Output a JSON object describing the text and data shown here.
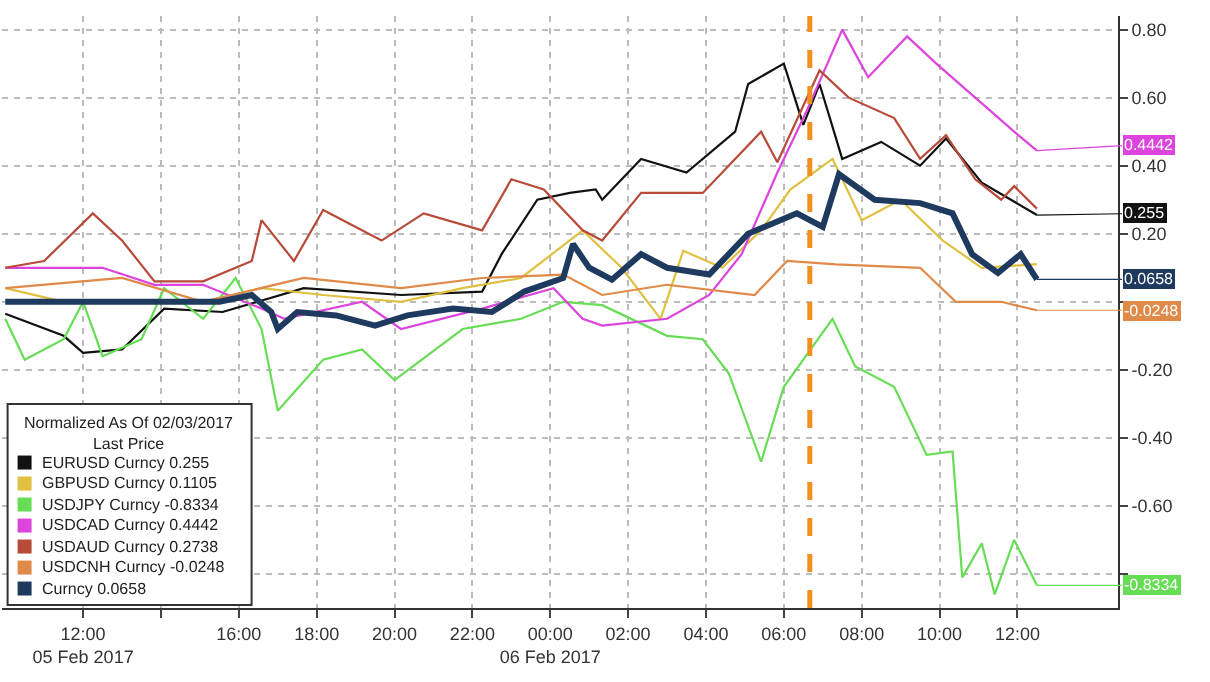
{
  "chart_data": {
    "type": "line",
    "legend_title": "Normalized As Of 02/03/2017\nLast Price",
    "xlim": [
      "2017-02-05T09:55",
      "2017-02-06T14:35"
    ],
    "xticks": [
      {
        "value": "2017-02-05T12:00",
        "label": "12:00\n05 Feb 2017"
      },
      {
        "value": "2017-02-05T14:00",
        "label": null
      },
      {
        "value": "2017-02-05T16:00",
        "label": "16:00"
      },
      {
        "value": "2017-02-05T18:00",
        "label": "18:00"
      },
      {
        "value": "2017-02-05T20:00",
        "label": "20:00"
      },
      {
        "value": "2017-02-05T22:00",
        "label": "22:00"
      },
      {
        "value": "2017-02-06T00:00",
        "label": "00:00\n06 Feb 2017"
      },
      {
        "value": "2017-02-06T02:00",
        "label": "02:00"
      },
      {
        "value": "2017-02-06T04:00",
        "label": "04:00"
      },
      {
        "value": "2017-02-06T06:00",
        "label": "06:00"
      },
      {
        "value": "2017-02-06T08:00",
        "label": "08:00"
      },
      {
        "value": "2017-02-06T10:00",
        "label": "10:00"
      },
      {
        "value": "2017-02-06T12:00",
        "label": "12:00"
      }
    ],
    "ylim": [
      -0.9,
      0.84
    ],
    "yticks": [
      {
        "value": 0.8,
        "label": "0.80"
      },
      {
        "value": 0.6,
        "label": "0.60"
      },
      {
        "value": 0.4,
        "label": "0.40"
      },
      {
        "value": 0.2,
        "label": "0.20"
      },
      {
        "value": 0,
        "label": null
      },
      {
        "value": -0.2,
        "label": "-0.20"
      },
      {
        "value": -0.4,
        "label": "-0.40"
      },
      {
        "value": -0.6,
        "label": "-0.60"
      },
      {
        "value": -0.8,
        "label": null
      }
    ],
    "grid": true,
    "legend": "bottom left",
    "marker": "none",
    "line_style": "solid",
    "ref_lines": [
      {
        "axis": "x",
        "value": "2017-02-06T06:40",
        "color": "#f0901e",
        "line_style": "dashed"
      }
    ],
    "series": [
      {
        "name": "EURUSD Curncy 0.255",
        "color": "#111111",
        "x": [
          "2017-02-05T10:00",
          "2017-02-05T11:30",
          "2017-02-05T12:00",
          "2017-02-05T13:00",
          "2017-02-05T14:05",
          "2017-02-05T15:35",
          "2017-02-05T17:40",
          "2017-02-05T20:10",
          "2017-02-05T22:15",
          "2017-02-05T22:45",
          "2017-02-05T23:40",
          "2017-02-06T00:30",
          "2017-02-06T01:10",
          "2017-02-06T01:20",
          "2017-02-06T02:20",
          "2017-02-06T03:30",
          "2017-02-06T04:45",
          "2017-02-06T05:05",
          "2017-02-06T06:00",
          "2017-02-06T06:30",
          "2017-02-06T06:55",
          "2017-02-06T07:30",
          "2017-02-06T08:30",
          "2017-02-06T09:30",
          "2017-02-06T10:10",
          "2017-02-06T11:05",
          "2017-02-06T11:50",
          "2017-02-06T12:30"
        ],
        "values": [
          -0.035,
          -0.1,
          -0.15,
          -0.14,
          -0.02,
          -0.03,
          0.04,
          0.02,
          0.03,
          0.14,
          0.3,
          0.32,
          0.33,
          0.3,
          0.42,
          0.38,
          0.5,
          0.64,
          0.7,
          0.52,
          0.64,
          0.42,
          0.47,
          0.4,
          0.48,
          0.35,
          0.3,
          0.255
        ],
        "value_labels": [
          null,
          null,
          null,
          null,
          null,
          null,
          null,
          null,
          null,
          null,
          null,
          null,
          null,
          null,
          null,
          null,
          null,
          null,
          null,
          null,
          null,
          null,
          null,
          null,
          null,
          null,
          null,
          "0.255"
        ]
      },
      {
        "name": "GBPUSD Curncy 0.1105",
        "color": "#e0c040",
        "x": [
          "2017-02-05T10:00",
          "2017-02-05T11:30",
          "2017-02-05T13:00",
          "2017-02-05T15:05",
          "2017-02-05T16:35",
          "2017-02-05T18:10",
          "2017-02-05T20:10",
          "2017-02-05T21:45",
          "2017-02-05T23:15",
          "2017-02-06T00:50",
          "2017-02-06T01:50",
          "2017-02-06T02:50",
          "2017-02-06T03:25",
          "2017-02-06T04:25",
          "2017-02-06T05:25",
          "2017-02-06T06:10",
          "2017-02-06T07:15",
          "2017-02-06T08:00",
          "2017-02-06T09:00",
          "2017-02-06T10:05",
          "2017-02-06T11:05",
          "2017-02-06T12:30"
        ],
        "values": [
          0.04,
          0.0,
          0.0,
          0.0,
          0.04,
          0.02,
          0.0,
          0.04,
          0.07,
          0.21,
          0.1,
          -0.05,
          0.15,
          0.1,
          0.21,
          0.33,
          0.42,
          0.24,
          0.3,
          0.18,
          0.1,
          0.1105
        ]
      },
      {
        "name": "USDJPY Curncy -0.8334",
        "color": "#66dd55",
        "x": [
          "2017-02-05T10:00",
          "2017-02-05T10:30",
          "2017-02-05T11:30",
          "2017-02-05T12:00",
          "2017-02-05T12:30",
          "2017-02-05T13:30",
          "2017-02-05T14:05",
          "2017-02-05T15:05",
          "2017-02-05T15:55",
          "2017-02-05T16:35",
          "2017-02-05T17:00",
          "2017-02-05T18:10",
          "2017-02-05T19:10",
          "2017-02-05T20:00",
          "2017-02-05T21:45",
          "2017-02-05T23:15",
          "2017-02-06T00:20",
          "2017-02-06T01:20",
          "2017-02-06T03:00",
          "2017-02-06T03:55",
          "2017-02-06T04:35",
          "2017-02-06T05:25",
          "2017-02-06T06:00",
          "2017-02-06T06:30",
          "2017-02-06T07:15",
          "2017-02-06T07:50",
          "2017-02-06T08:50",
          "2017-02-06T09:40",
          "2017-02-06T10:20",
          "2017-02-06T10:35",
          "2017-02-06T11:05",
          "2017-02-06T11:25",
          "2017-02-06T11:55",
          "2017-02-06T12:30"
        ],
        "values": [
          -0.05,
          -0.17,
          -0.11,
          0.0,
          -0.16,
          -0.11,
          0.04,
          -0.05,
          0.07,
          -0.08,
          -0.32,
          -0.17,
          -0.14,
          -0.23,
          -0.08,
          -0.05,
          0.0,
          -0.01,
          -0.1,
          -0.11,
          -0.21,
          -0.47,
          -0.25,
          -0.17,
          -0.05,
          -0.19,
          -0.25,
          -0.45,
          -0.44,
          -0.81,
          -0.71,
          -0.86,
          -0.7,
          -0.8334
        ],
        "value_labels": [
          null,
          null,
          null,
          null,
          null,
          null,
          null,
          null,
          null,
          null,
          null,
          null,
          null,
          null,
          null,
          null,
          null,
          null,
          null,
          null,
          null,
          null,
          null,
          null,
          null,
          null,
          null,
          null,
          null,
          null,
          null,
          null,
          null,
          "-0.8334"
        ]
      },
      {
        "name": "USDCAD Curncy 0.4442",
        "color": "#dd44dd",
        "x": [
          "2017-02-05T10:00",
          "2017-02-05T12:30",
          "2017-02-05T13:50",
          "2017-02-05T15:05",
          "2017-02-05T16:35",
          "2017-02-05T17:10",
          "2017-02-05T19:10",
          "2017-02-05T20:10",
          "2017-02-05T22:15",
          "2017-02-06T00:05",
          "2017-02-06T00:50",
          "2017-02-06T01:20",
          "2017-02-06T03:00",
          "2017-02-06T04:05",
          "2017-02-06T04:55",
          "2017-02-06T05:50",
          "2017-02-06T06:35",
          "2017-02-06T07:30",
          "2017-02-06T08:10",
          "2017-02-06T09:10",
          "2017-02-06T09:55",
          "2017-02-06T10:55",
          "2017-02-06T11:55",
          "2017-02-06T12:30"
        ],
        "values": [
          0.1,
          0.1,
          0.05,
          0.05,
          -0.02,
          -0.05,
          0.0,
          -0.08,
          -0.02,
          0.04,
          -0.05,
          -0.07,
          -0.05,
          0.02,
          0.14,
          0.38,
          0.56,
          0.8,
          0.66,
          0.78,
          0.7,
          0.6,
          0.5,
          0.4442
        ],
        "value_labels": [
          null,
          null,
          null,
          null,
          null,
          null,
          null,
          null,
          null,
          null,
          null,
          null,
          null,
          null,
          null,
          null,
          null,
          null,
          null,
          null,
          null,
          null,
          null,
          "0.4442"
        ]
      },
      {
        "name": "USDAUD Curncy 0.2738",
        "color": "#b84a3a",
        "x": [
          "2017-02-05T10:00",
          "2017-02-05T11:00",
          "2017-02-05T12:15",
          "2017-02-05T13:00",
          "2017-02-05T13:50",
          "2017-02-05T15:05",
          "2017-02-05T16:20",
          "2017-02-05T16:35",
          "2017-02-05T17:25",
          "2017-02-05T18:10",
          "2017-02-05T19:40",
          "2017-02-05T20:45",
          "2017-02-05T22:15",
          "2017-02-05T23:00",
          "2017-02-05T23:50",
          "2017-02-06T00:50",
          "2017-02-06T01:20",
          "2017-02-06T02:20",
          "2017-02-06T03:55",
          "2017-02-06T05:25",
          "2017-02-06T05:50",
          "2017-02-06T06:55",
          "2017-02-06T07:40",
          "2017-02-06T08:50",
          "2017-02-06T09:30",
          "2017-02-06T10:10",
          "2017-02-06T10:55",
          "2017-02-06T11:35",
          "2017-02-06T11:55",
          "2017-02-06T12:30"
        ],
        "values": [
          0.1,
          0.12,
          0.26,
          0.18,
          0.06,
          0.06,
          0.12,
          0.24,
          0.12,
          0.27,
          0.18,
          0.26,
          0.21,
          0.36,
          0.33,
          0.21,
          0.18,
          0.32,
          0.32,
          0.5,
          0.41,
          0.68,
          0.6,
          0.54,
          0.42,
          0.49,
          0.36,
          0.3,
          0.34,
          0.2738
        ]
      },
      {
        "name": "USDCNH Curncy -0.0248",
        "color": "#e08a4a",
        "x": [
          "2017-02-05T10:00",
          "2017-02-05T13:00",
          "2017-02-05T15:05",
          "2017-02-05T17:40",
          "2017-02-05T20:10",
          "2017-02-05T22:15",
          "2017-02-06T00:20",
          "2017-02-06T01:20",
          "2017-02-06T03:00",
          "2017-02-06T05:15",
          "2017-02-06T06:05",
          "2017-02-06T07:20",
          "2017-02-06T09:30",
          "2017-02-06T10:25",
          "2017-02-06T11:35",
          "2017-02-06T12:30"
        ],
        "values": [
          0.04,
          0.07,
          0.0,
          0.07,
          0.04,
          0.07,
          0.08,
          0.02,
          0.05,
          0.02,
          0.12,
          0.11,
          0.1,
          0.0,
          0.0,
          -0.0248
        ],
        "value_labels": [
          null,
          null,
          null,
          null,
          null,
          null,
          null,
          null,
          null,
          null,
          null,
          null,
          null,
          null,
          null,
          "-0.0248"
        ]
      },
      {
        "name": "Curncy 0.0658",
        "color": "#1f3a5f",
        "x": [
          "2017-02-05T10:00",
          "2017-02-05T15:30",
          "2017-02-05T16:20",
          "2017-02-05T16:50",
          "2017-02-05T17:00",
          "2017-02-05T17:30",
          "2017-02-05T18:30",
          "2017-02-05T19:30",
          "2017-02-05T20:20",
          "2017-02-05T21:30",
          "2017-02-05T22:30",
          "2017-02-05T23:20",
          "2017-02-06T00:20",
          "2017-02-06T00:35",
          "2017-02-06T01:00",
          "2017-02-06T01:35",
          "2017-02-06T02:20",
          "2017-02-06T03:00",
          "2017-02-06T04:05",
          "2017-02-06T05:05",
          "2017-02-06T06:20",
          "2017-02-06T07:00",
          "2017-02-06T07:25",
          "2017-02-06T08:20",
          "2017-02-06T09:30",
          "2017-02-06T10:20",
          "2017-02-06T10:50",
          "2017-02-06T11:30",
          "2017-02-06T12:05",
          "2017-02-06T12:30"
        ],
        "values": [
          0.0,
          0.0,
          0.02,
          -0.03,
          -0.08,
          -0.03,
          -0.04,
          -0.07,
          -0.04,
          -0.02,
          -0.03,
          0.03,
          0.07,
          0.17,
          0.1,
          0.065,
          0.14,
          0.1,
          0.08,
          0.2,
          0.26,
          0.22,
          0.375,
          0.3,
          0.29,
          0.26,
          0.14,
          0.085,
          0.14,
          0.0658
        ],
        "value_labels": [
          null,
          null,
          null,
          null,
          null,
          null,
          null,
          null,
          null,
          null,
          null,
          null,
          null,
          null,
          null,
          null,
          null,
          null,
          null,
          null,
          null,
          null,
          null,
          null,
          null,
          null,
          null,
          null,
          null,
          "0.0658"
        ]
      }
    ]
  }
}
